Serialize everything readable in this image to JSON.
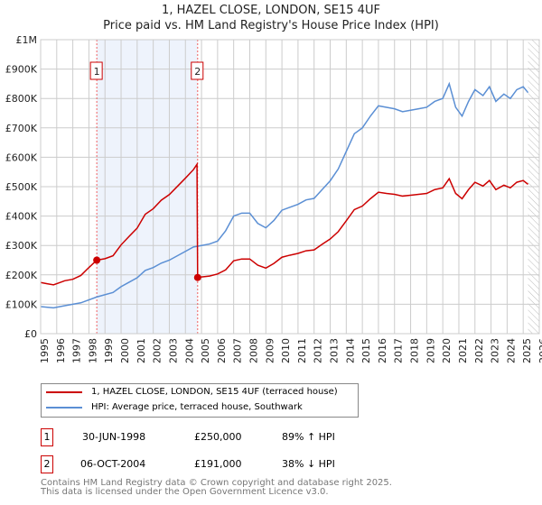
{
  "chart_data": {
    "type": "line",
    "title": "1, HAZEL CLOSE, LONDON, SE15 4UF",
    "subtitle": "Price paid vs. HM Land Registry's House Price Index (HPI)",
    "xlim": [
      1995,
      2026
    ],
    "ylim": [
      0,
      1000000
    ],
    "x_ticks": [
      "1995",
      "1996",
      "1997",
      "1998",
      "1999",
      "2000",
      "2001",
      "2002",
      "2003",
      "2004",
      "2005",
      "2006",
      "2007",
      "2008",
      "2009",
      "2010",
      "2011",
      "2012",
      "2013",
      "2014",
      "2015",
      "2016",
      "2017",
      "2018",
      "2019",
      "2020",
      "2021",
      "2022",
      "2023",
      "2024",
      "2025",
      "2026"
    ],
    "y_ticks": [
      {
        "v": 0,
        "label": "£0"
      },
      {
        "v": 100000,
        "label": "£100K"
      },
      {
        "v": 200000,
        "label": "£200K"
      },
      {
        "v": 300000,
        "label": "£300K"
      },
      {
        "v": 400000,
        "label": "£400K"
      },
      {
        "v": 500000,
        "label": "£500K"
      },
      {
        "v": 600000,
        "label": "£600K"
      },
      {
        "v": 700000,
        "label": "£700K"
      },
      {
        "v": 800000,
        "label": "£800K"
      },
      {
        "v": 900000,
        "label": "£900K"
      },
      {
        "v": 1000000,
        "label": "£1M"
      }
    ],
    "grid": true,
    "shaded_range": [
      1998.49,
      2004.76
    ],
    "forecast_from": 2025.3,
    "series": [
      {
        "name": "1, HAZEL CLOSE, LONDON, SE15 4UF (terraced house)",
        "color": "#cc0000",
        "points": [
          [
            1995,
            174
          ],
          [
            1995.4,
            170
          ],
          [
            1995.8,
            166
          ],
          [
            1996.1,
            172
          ],
          [
            1996.5,
            180
          ],
          [
            1997,
            185
          ],
          [
            1997.5,
            198
          ],
          [
            1998,
            225
          ],
          [
            1998.49,
            250
          ],
          [
            1999,
            255
          ],
          [
            1999.5,
            265
          ],
          [
            2000,
            302
          ],
          [
            2000.5,
            331
          ],
          [
            2001,
            359
          ],
          [
            2001.5,
            406
          ],
          [
            2002,
            425
          ],
          [
            2002.5,
            454
          ],
          [
            2003,
            473
          ],
          [
            2003.5,
            501
          ],
          [
            2004,
            529
          ],
          [
            2004.5,
            558
          ],
          [
            2004.72,
            576
          ],
          [
            2004.76,
            191
          ],
          [
            2005,
            193
          ],
          [
            2005.5,
            196
          ],
          [
            2006,
            203
          ],
          [
            2006.5,
            217
          ],
          [
            2007,
            248
          ],
          [
            2007.5,
            254
          ],
          [
            2008,
            254
          ],
          [
            2008.5,
            233
          ],
          [
            2009,
            223
          ],
          [
            2009.5,
            239
          ],
          [
            2010,
            260
          ],
          [
            2010.5,
            267
          ],
          [
            2011,
            273
          ],
          [
            2011.5,
            282
          ],
          [
            2012,
            285
          ],
          [
            2012.5,
            304
          ],
          [
            2013,
            322
          ],
          [
            2013.5,
            347
          ],
          [
            2014,
            384
          ],
          [
            2014.5,
            422
          ],
          [
            2015,
            434
          ],
          [
            2015.5,
            459
          ],
          [
            2016,
            481
          ],
          [
            2016.5,
            477
          ],
          [
            2017,
            474
          ],
          [
            2017.5,
            468
          ],
          [
            2018,
            471
          ],
          [
            2018.5,
            474
          ],
          [
            2019,
            477
          ],
          [
            2019.5,
            490
          ],
          [
            2020,
            496
          ],
          [
            2020.4,
            527
          ],
          [
            2020.8,
            477
          ],
          [
            2021.2,
            459
          ],
          [
            2021.6,
            490
          ],
          [
            2022,
            515
          ],
          [
            2022.5,
            502
          ],
          [
            2022.9,
            521
          ],
          [
            2023.3,
            490
          ],
          [
            2023.8,
            505
          ],
          [
            2024.2,
            496
          ],
          [
            2024.6,
            515
          ],
          [
            2025,
            521
          ],
          [
            2025.3,
            508
          ]
        ]
      },
      {
        "name": "HPI: Average price, terraced house, Southwark",
        "color": "#5b8fd4",
        "points": [
          [
            1995,
            92
          ],
          [
            1995.8,
            88
          ],
          [
            1996.5,
            95
          ],
          [
            1997.5,
            105
          ],
          [
            1998.5,
            125
          ],
          [
            1999.5,
            140
          ],
          [
            2000,
            160
          ],
          [
            2000.5,
            175
          ],
          [
            2001,
            190
          ],
          [
            2001.5,
            215
          ],
          [
            2002,
            225
          ],
          [
            2002.5,
            240
          ],
          [
            2003,
            250
          ],
          [
            2003.5,
            265
          ],
          [
            2004,
            280
          ],
          [
            2004.5,
            295
          ],
          [
            2005,
            300
          ],
          [
            2005.5,
            305
          ],
          [
            2006,
            315
          ],
          [
            2006.5,
            350
          ],
          [
            2007,
            400
          ],
          [
            2007.5,
            410
          ],
          [
            2008,
            410
          ],
          [
            2008.5,
            375
          ],
          [
            2009,
            360
          ],
          [
            2009.5,
            385
          ],
          [
            2010,
            420
          ],
          [
            2010.5,
            430
          ],
          [
            2011,
            440
          ],
          [
            2011.5,
            455
          ],
          [
            2012,
            460
          ],
          [
            2012.5,
            490
          ],
          [
            2013,
            520
          ],
          [
            2013.5,
            560
          ],
          [
            2014,
            620
          ],
          [
            2014.5,
            680
          ],
          [
            2015,
            700
          ],
          [
            2015.5,
            740
          ],
          [
            2016,
            775
          ],
          [
            2016.5,
            770
          ],
          [
            2017,
            765
          ],
          [
            2017.5,
            755
          ],
          [
            2018,
            760
          ],
          [
            2018.5,
            765
          ],
          [
            2019,
            770
          ],
          [
            2019.5,
            790
          ],
          [
            2020,
            800
          ],
          [
            2020.4,
            850
          ],
          [
            2020.8,
            770
          ],
          [
            2021.2,
            740
          ],
          [
            2021.6,
            790
          ],
          [
            2022,
            830
          ],
          [
            2022.5,
            810
          ],
          [
            2022.9,
            840
          ],
          [
            2023.3,
            790
          ],
          [
            2023.8,
            815
          ],
          [
            2024.2,
            800
          ],
          [
            2024.6,
            830
          ],
          [
            2025,
            840
          ],
          [
            2025.3,
            820
          ]
        ]
      }
    ],
    "value_units": "thousands GBP",
    "sales": [
      {
        "id": "1",
        "x": 1998.49,
        "y": 250
      },
      {
        "id": "2",
        "x": 2004.76,
        "y": 191
      }
    ]
  },
  "legend": {
    "items": [
      "1, HAZEL CLOSE, LONDON, SE15 4UF (terraced house)",
      "HPI: Average price, terraced house, Southwark"
    ]
  },
  "table": [
    {
      "id": "1",
      "date": "30-JUN-1998",
      "price": "£250,000",
      "hpi": "89% ↑ HPI"
    },
    {
      "id": "2",
      "date": "06-OCT-2004",
      "price": "£191,000",
      "hpi": "38% ↓ HPI"
    }
  ],
  "footer": {
    "line1": "Contains HM Land Registry data © Crown copyright and database right 2025.",
    "line2": "This data is licensed under the Open Government Licence v3.0."
  }
}
